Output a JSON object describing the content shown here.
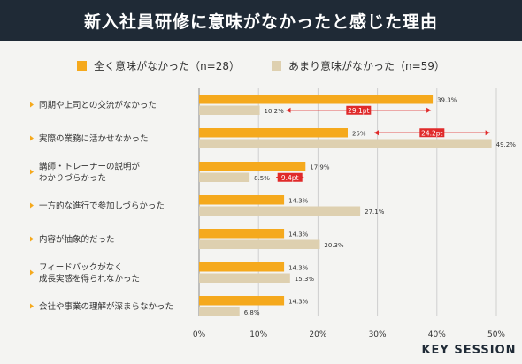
{
  "title": "新入社員研修に意味がなかったと感じた理由",
  "colors": {
    "series1": "#f5a91d",
    "series2": "#ded0b0",
    "header_bg": "#1f2a36",
    "arrow": "#e02a2a",
    "grid": "#cfcfcf"
  },
  "chart_data": {
    "type": "bar",
    "orientation": "horizontal",
    "categories": [
      "同期や上司との交流がなかった",
      "実際の業務に活かせなかった",
      "講師・トレーナーの説明が\nわかりづらかった",
      "一方的な進行で参加しづらかった",
      "内容が抽象的だった",
      "フィードバックがなく\n成長実感を得られなかった",
      "会社や事業の理解が深まらなかった"
    ],
    "series": [
      {
        "name": "全く意味がなかった（n=28）",
        "values": [
          39.3,
          25,
          17.9,
          14.3,
          14.3,
          14.3,
          14.3
        ],
        "labels": [
          "39.3%",
          "25%",
          "17.9%",
          "14.3%",
          "14.3%",
          "14.3%",
          "14.3%"
        ]
      },
      {
        "name": "あまり意味がなかった（n=59）",
        "values": [
          10.2,
          49.2,
          8.5,
          27.1,
          20.3,
          15.3,
          6.8
        ],
        "labels": [
          "10.2%",
          "49.2%",
          "8.5%",
          "27.1%",
          "20.3%",
          "15.3%",
          "6.8%"
        ]
      }
    ],
    "xlim": [
      0,
      50
    ],
    "xticks": [
      "0%",
      "10%",
      "20%",
      "30%",
      "40%",
      "50%"
    ],
    "grid": true,
    "legend": "top",
    "annotations": [
      {
        "category_index": 0,
        "text": "29.1pt"
      },
      {
        "category_index": 1,
        "text": "24.2pt"
      },
      {
        "category_index": 2,
        "text": "9.4pt"
      }
    ]
  },
  "logo": {
    "main": "KEY SESSION"
  }
}
